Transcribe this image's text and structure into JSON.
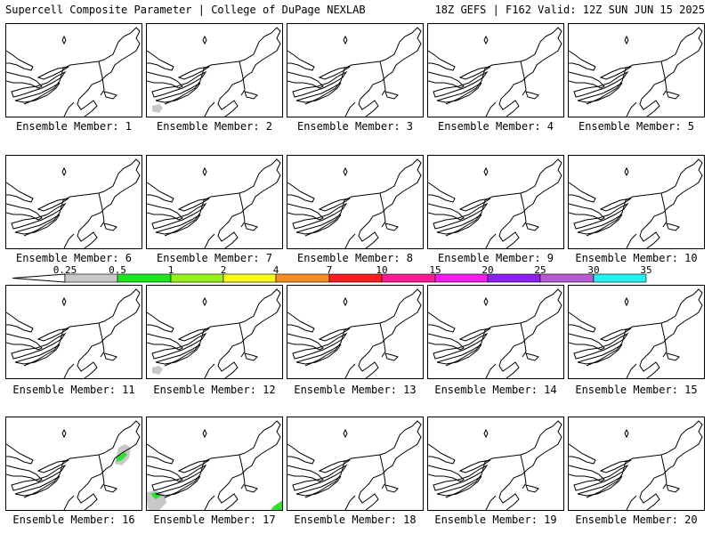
{
  "header": {
    "left": "Supercell Composite Parameter | College of DuPage NEXLAB",
    "right": "18Z GEFS | F162 Valid: 12Z SUN JUN 15 2025"
  },
  "members": [
    {
      "label": "Ensemble Member: 1",
      "blobs": []
    },
    {
      "label": "Ensemble Member: 2",
      "blobs": [
        {
          "color": "gray",
          "shape": "sw-small"
        }
      ]
    },
    {
      "label": "Ensemble Member: 3",
      "blobs": []
    },
    {
      "label": "Ensemble Member: 4",
      "blobs": []
    },
    {
      "label": "Ensemble Member: 5",
      "blobs": []
    },
    {
      "label": "Ensemble Member: 6",
      "blobs": []
    },
    {
      "label": "Ensemble Member: 7",
      "blobs": []
    },
    {
      "label": "Ensemble Member: 8",
      "blobs": []
    },
    {
      "label": "Ensemble Member: 9",
      "blobs": []
    },
    {
      "label": "Ensemble Member: 10",
      "blobs": []
    },
    {
      "label": "Ensemble Member: 11",
      "blobs": []
    },
    {
      "label": "Ensemble Member: 12",
      "blobs": [
        {
          "color": "gray",
          "shape": "sw-small"
        }
      ]
    },
    {
      "label": "Ensemble Member: 13",
      "blobs": []
    },
    {
      "label": "Ensemble Member: 14",
      "blobs": []
    },
    {
      "label": "Ensemble Member: 15",
      "blobs": []
    },
    {
      "label": "Ensemble Member: 16",
      "blobs": [
        {
          "color": "gray",
          "shape": "maine"
        },
        {
          "color": "green",
          "shape": "maine-core"
        }
      ]
    },
    {
      "label": "Ensemble Member: 17",
      "blobs": [
        {
          "color": "gray",
          "shape": "sw-large"
        },
        {
          "color": "green",
          "shape": "sw-core"
        },
        {
          "color": "green",
          "shape": "se-edge"
        }
      ]
    },
    {
      "label": "Ensemble Member: 18",
      "blobs": []
    },
    {
      "label": "Ensemble Member: 19",
      "blobs": []
    },
    {
      "label": "Ensemble Member: 20",
      "blobs": []
    }
  ],
  "colorbar": {
    "ticks": [
      "0.25",
      "0.5",
      "1",
      "2",
      "4",
      "7",
      "10",
      "15",
      "20",
      "25",
      "30",
      "35"
    ],
    "colors": [
      "#c8c8c8",
      "#1ee61e",
      "#96f01e",
      "#fafa1e",
      "#fa8c1e",
      "#fa1e1e",
      "#fa1e96",
      "#f01ef0",
      "#8c1ef0",
      "#b45ad2",
      "#28f0f0"
    ],
    "colors_names": {
      "gray": "#c8c8c8",
      "green": "#2fe02f"
    }
  }
}
